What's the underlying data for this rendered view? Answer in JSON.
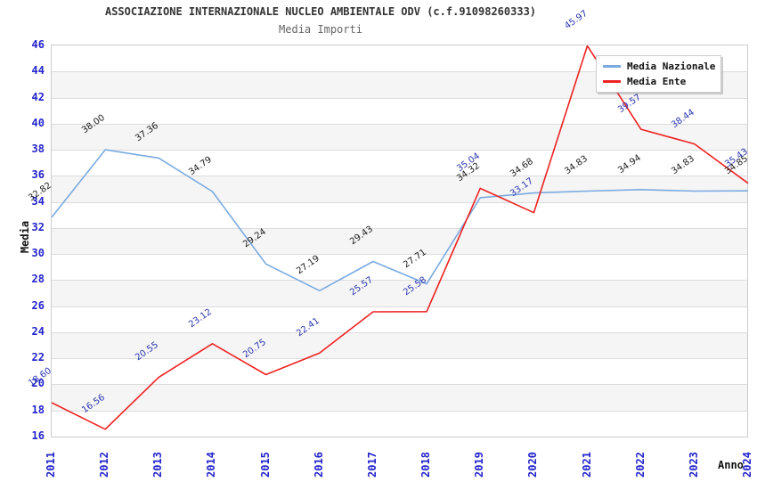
{
  "chart_data": {
    "type": "line",
    "title": "ASSOCIAZIONE INTERNAZIONALE NUCLEO AMBIENTALE ODV (c.f.91098260333)",
    "subtitle": "Media Importi",
    "xlabel": "Anno",
    "ylabel": "Media",
    "categories": [
      "2011",
      "2012",
      "2013",
      "2014",
      "2015",
      "2016",
      "2017",
      "2018",
      "2019",
      "2020",
      "2021",
      "2022",
      "2023",
      "2024"
    ],
    "ylim": [
      16,
      46
    ],
    "ytick_step": 2,
    "grid": true,
    "legend_position": "top-right",
    "series": [
      {
        "name": "Media Nazionale",
        "line_color": "#7aaae0",
        "label_color": "#1a1a1a",
        "values": [
          "32.82",
          "38.00",
          "37.36",
          "34.79",
          "29.24",
          "27.19",
          "29.43",
          "27.71",
          "34.32",
          "34.68",
          "34.83",
          "34.94",
          "34.83",
          "34.85"
        ]
      },
      {
        "name": "Media Ente",
        "line_color": "#ee2222",
        "label_color": "#2a35b0",
        "values": [
          "18.60",
          "16.56",
          "20.55",
          "23.12",
          "20.75",
          "22.41",
          "25.57",
          "25.58",
          "35.04",
          "33.17",
          "45.97",
          "39.57",
          "38.44",
          "35.43"
        ]
      }
    ],
    "colors": {
      "axis_tick": "#2323cc",
      "band_gray": "#f5f5f5",
      "band_white": "#ffffff",
      "gridline": "#dcdcdc",
      "frame": "#cccccc",
      "title": "#333333",
      "subtitle": "#666666"
    }
  }
}
